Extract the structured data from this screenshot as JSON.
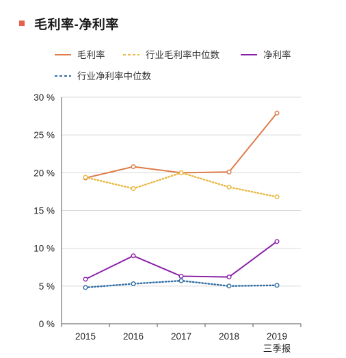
{
  "header": {
    "title": "毛利率-净利率",
    "marker_color": "#e8604c"
  },
  "chart_data": {
    "type": "line",
    "categories": [
      "2015",
      "2016",
      "2017",
      "2018",
      "2019\n三季报"
    ],
    "series": [
      {
        "name": "毛利率",
        "values": [
          19.3,
          20.8,
          20.0,
          20.1,
          27.9
        ],
        "color": "#de7b47",
        "style": "solid"
      },
      {
        "name": "行业毛利率中位数",
        "values": [
          19.4,
          17.9,
          20.0,
          18.1,
          16.8
        ],
        "color": "#e8b840",
        "style": "dotted"
      },
      {
        "name": "净利率",
        "values": [
          5.9,
          9.0,
          6.3,
          6.2,
          10.9
        ],
        "color": "#8b20a8",
        "style": "solid"
      },
      {
        "name": "行业净利率中位数",
        "values": [
          4.8,
          5.3,
          5.7,
          5.0,
          5.1
        ],
        "color": "#2e6da4",
        "style": "dotted"
      }
    ],
    "ylim": [
      0,
      30
    ],
    "yticks": [
      0,
      5,
      10,
      15,
      20,
      25,
      30
    ],
    "ytick_labels": [
      "0 %",
      "5 %",
      "10 %",
      "15 %",
      "20 %",
      "25 %",
      "30 %"
    ],
    "grid": true,
    "legend_position": "top"
  }
}
